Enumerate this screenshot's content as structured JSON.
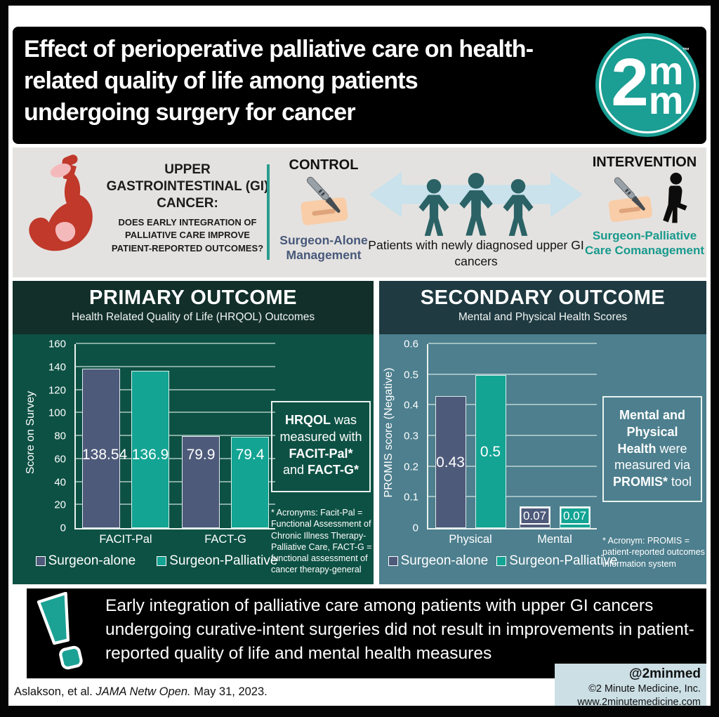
{
  "colors": {
    "teal_accent": "#189a8d",
    "bar_slate": "#4e5a7a",
    "bar_teal": "#13a493",
    "primary_panel_bg": "#0d5144",
    "primary_header_bg": "#122f29",
    "secondary_panel_bg": "#4d7f8e",
    "secondary_header_bg": "#1f3a41",
    "band_gray": "#e4e2e0",
    "arrow_blue": "#c9e2ec",
    "person_teal": "#2b6266",
    "control_text": "#47587a",
    "footer_box_bg": "#cbdfe5",
    "stomach_red": "#c0392b"
  },
  "header": {
    "title_lines": [
      "Effect of perioperative palliative care on health-",
      "related quality of life among patients",
      "undergoing surgery for cancer"
    ],
    "logo": {
      "big": "2",
      "m1": "m",
      "m2": "m",
      "tm": "™"
    }
  },
  "study": {
    "population": {
      "heading": "UPPER GASTROINTESTINAL (GI) CANCER:",
      "question": "DOES EARLY INTEGRATION OF PALLIATIVE CARE IMPROVE PATIENT-REPORTED OUTCOMES?"
    },
    "control": {
      "label": "CONTROL",
      "name": "Surgeon-Alone Management"
    },
    "patients": {
      "caption": "Patients with newly diagnosed upper GI cancers"
    },
    "intervention": {
      "label": "INTERVENTION",
      "name": "Surgeon-Palliative Care Comanagement"
    }
  },
  "primary": {
    "title": "PRIMARY OUTCOME",
    "subtitle": "Health Related Quality of Life (HRQOL) Outcomes",
    "note_segments": [
      {
        "t": "HRQOL",
        "b": true
      },
      {
        "t": " was measured with ",
        "b": false
      },
      {
        "t": "FACIT-Pal*",
        "b": true
      },
      {
        "t": " and ",
        "b": false
      },
      {
        "t": "FACT-G*",
        "b": true
      }
    ],
    "footnote": "* Acronyms: Facit-Pal = Functional Assessment of Chronic Illness Therapy-Palliative Care, FACT-G = functional assessment of cancer therapy-general"
  },
  "secondary": {
    "title": "SECONDARY OUTCOME",
    "subtitle": "Mental and Physical Health Scores",
    "note_segments": [
      {
        "t": "Mental and Physical Health",
        "b": true
      },
      {
        "t": " were measured via ",
        "b": false
      },
      {
        "t": "PROMIS*",
        "b": true
      },
      {
        "t": " tool",
        "b": false
      }
    ],
    "footnote": "* Acronym: PROMIS = patient-reported outcomes information system"
  },
  "chart_data": [
    {
      "type": "bar",
      "title": "PRIMARY OUTCOME",
      "subtitle": "Health Related Quality of Life (HRQOL) Outcomes",
      "categories": [
        "FACIT-Pal",
        "FACT-G"
      ],
      "series": [
        {
          "name": "Surgeon-alone",
          "color": "#4e5a7a",
          "values": [
            138.54,
            79.9
          ],
          "labels": [
            "138.54",
            "79.9"
          ]
        },
        {
          "name": "Surgeon-Palliative",
          "color": "#13a493",
          "values": [
            136.9,
            79.4
          ],
          "labels": [
            "136.9",
            "79.4"
          ]
        }
      ],
      "xlabel": "",
      "ylabel": "Score on Survey",
      "ylim": [
        0,
        160
      ],
      "ytick": 20,
      "grid": true,
      "legend_position": "bottom"
    },
    {
      "type": "bar",
      "title": "SECONDARY OUTCOME",
      "subtitle": "Mental and Physical Health Scores",
      "categories": [
        "Physical",
        "Mental"
      ],
      "series": [
        {
          "name": "Surgeon-alone",
          "color": "#4e5a7a",
          "values": [
            0.43,
            0.07
          ],
          "labels": [
            "0.43",
            "0.07"
          ]
        },
        {
          "name": "Surgeon-Palliative",
          "color": "#13a493",
          "values": [
            0.5,
            0.07
          ],
          "labels": [
            "0.5",
            "0.07"
          ]
        }
      ],
      "xlabel": "",
      "ylabel": "PROMIS score (Negative)",
      "ylim": [
        0,
        0.6
      ],
      "ytick": 0.1,
      "grid": true,
      "legend_position": "bottom"
    }
  ],
  "summary": {
    "text": "Early integration of palliative care among patients with upper GI cancers undergoing curative-intent surgeries did not result in improvements in patient-reported quality of life and mental health measures"
  },
  "footer": {
    "citation_segments": [
      {
        "t": "Aslakson, et al. "
      },
      {
        "t": "JAMA Netw Open.",
        "i": true
      },
      {
        "t": " May 31, 2023."
      }
    ],
    "handle": "@2minmed",
    "company": "©2 Minute Medicine, Inc.",
    "website": "www.2minutemedicine.com"
  }
}
